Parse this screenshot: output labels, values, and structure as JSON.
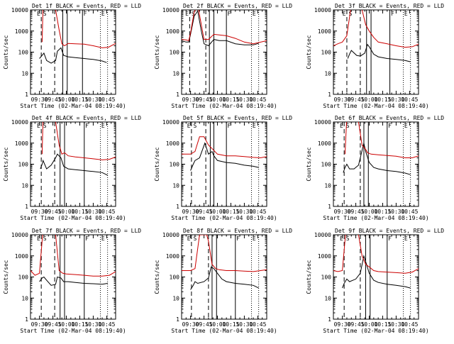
{
  "figure": {
    "xlabel": "Start Time (02-Mar-04 08:19:40)",
    "ylabel": "Counts/sec",
    "x_ticks": [
      "09:30",
      "09:45",
      "10:00",
      "10:15",
      "10:30",
      "10:45"
    ],
    "y_ticks": [
      "1",
      "10",
      "100",
      "1000",
      "10000"
    ],
    "colors": {
      "events": "#000000",
      "lld": "#cc0000"
    }
  },
  "chart_data": [
    {
      "type": "line",
      "title": "Det 1f BLACK = Events, RED = LLD",
      "xlabel": "Start Time (02-Mar-04 08:19:40)",
      "ylabel": "Counts/sec",
      "yscale": "log",
      "ylim": [
        1,
        10000
      ],
      "x_unit": "minutes after 09:20",
      "xlim": [
        0,
        95
      ],
      "region_labels": [
        "E",
        "S",
        "F",
        "E"
      ],
      "solid_lines": [
        36,
        41,
        58
      ],
      "dashed_lines": [
        12,
        27
      ],
      "dotted_lines": [
        78,
        86
      ],
      "series": [
        {
          "name": "Events",
          "color": "#000000",
          "x": [
            10,
            14,
            15,
            18,
            23,
            28,
            30,
            34,
            37,
            42,
            50,
            60,
            70,
            80,
            85
          ],
          "y": [
            50,
            80,
            90,
            40,
            30,
            40,
            110,
            160,
            70,
            60,
            55,
            50,
            45,
            38,
            32
          ]
        },
        {
          "name": "LLD",
          "color": "#cc0000",
          "x": [
            13,
            14,
            20,
            28,
            32,
            35,
            38,
            42,
            50,
            60,
            70,
            80,
            87,
            95
          ],
          "y": [
            300,
            20000,
            15000,
            10000,
            1100,
            250,
            200,
            260,
            250,
            240,
            200,
            160,
            170,
            260
          ]
        }
      ]
    },
    {
      "type": "line",
      "title": "Det 2f BLACK = Events, RED = LLD",
      "xlabel": "Start Time (02-Mar-04 08:19:40)",
      "ylabel": "Counts/sec",
      "yscale": "log",
      "ylim": [
        1,
        10000
      ],
      "x_unit": "minutes after 09:20",
      "xlim": [
        0,
        95
      ],
      "region_labels": [
        "E",
        "S",
        "F",
        "E"
      ],
      "solid_lines": [
        31,
        36,
        50
      ],
      "dashed_lines": [
        9,
        27
      ],
      "dotted_lines": [
        78,
        86
      ],
      "series": [
        {
          "name": "Events",
          "color": "#000000",
          "x": [
            0,
            5,
            8,
            10,
            14,
            18,
            22,
            25,
            30,
            36,
            42,
            50,
            60,
            70,
            80,
            86
          ],
          "y": [
            350,
            300,
            300,
            700,
            5000,
            9000,
            1000,
            250,
            200,
            400,
            350,
            350,
            250,
            220,
            220,
            260
          ]
        },
        {
          "name": "LLD",
          "color": "#cc0000",
          "x": [
            0,
            5,
            8,
            10,
            14,
            18,
            22,
            25,
            30,
            36,
            42,
            50,
            60,
            70,
            80,
            95
          ],
          "y": [
            400,
            380,
            350,
            800,
            8000,
            20000,
            2000,
            400,
            400,
            700,
            650,
            600,
            450,
            300,
            250,
            350
          ]
        }
      ]
    },
    {
      "type": "line",
      "title": "Det 3f BLACK = Events, RED = LLD",
      "xlabel": "Start Time (02-Mar-04 08:19:40)",
      "ylabel": "Counts/sec",
      "yscale": "log",
      "ylim": [
        1,
        10000
      ],
      "x_unit": "minutes after 09:20",
      "xlim": [
        0,
        95
      ],
      "region_labels": [
        "E",
        "S",
        "F",
        "E"
      ],
      "solid_lines": [
        37,
        42,
        63
      ],
      "dashed_lines": [
        15,
        30
      ],
      "dotted_lines": [
        78,
        86
      ],
      "series": [
        {
          "name": "Events",
          "color": "#000000",
          "x": [
            16,
            18,
            20,
            26,
            30,
            35,
            38,
            40,
            45,
            50,
            60,
            70,
            80,
            86
          ],
          "y": [
            50,
            80,
            120,
            70,
            65,
            90,
            230,
            180,
            80,
            60,
            50,
            45,
            40,
            35
          ]
        },
        {
          "name": "LLD",
          "color": "#cc0000",
          "x": [
            0,
            5,
            10,
            15,
            20,
            28,
            32,
            36,
            40,
            45,
            50,
            60,
            70,
            80,
            88,
            95
          ],
          "y": [
            200,
            250,
            300,
            600,
            20000,
            15000,
            10000,
            2000,
            1000,
            500,
            300,
            250,
            200,
            170,
            180,
            240
          ]
        }
      ]
    },
    {
      "type": "line",
      "title": "Det 4f BLACK = Events, RED = LLD",
      "xlabel": "Start Time (02-Mar-04 08:19:40)",
      "ylabel": "Counts/sec",
      "yscale": "log",
      "ylim": [
        1,
        10000
      ],
      "x_unit": "minutes after 09:20",
      "xlim": [
        0,
        95
      ],
      "region_labels": [
        "E",
        "S",
        "F",
        "E"
      ],
      "solid_lines": [
        33,
        38,
        60
      ],
      "dashed_lines": [
        12,
        27
      ],
      "dotted_lines": [
        78,
        86
      ],
      "series": [
        {
          "name": "Events",
          "color": "#000000",
          "x": [
            11,
            13,
            14,
            18,
            23,
            28,
            30,
            34,
            37,
            42,
            50,
            60,
            70,
            80,
            86
          ],
          "y": [
            60,
            100,
            150,
            60,
            90,
            200,
            300,
            200,
            80,
            60,
            55,
            50,
            45,
            40,
            30
          ]
        },
        {
          "name": "LLD",
          "color": "#cc0000",
          "x": [
            13,
            14,
            20,
            28,
            32,
            35,
            38,
            42,
            50,
            60,
            70,
            80,
            88,
            95
          ],
          "y": [
            300,
            20000,
            15000,
            10000,
            800,
            300,
            350,
            250,
            220,
            200,
            180,
            160,
            170,
            220
          ]
        }
      ]
    },
    {
      "type": "line",
      "title": "Det 5f BLACK = Events, RED = LLD",
      "xlabel": "Start Time (02-Mar-04 08:19:40)",
      "ylabel": "Counts/sec",
      "yscale": "log",
      "ylim": [
        1,
        10000
      ],
      "x_unit": "minutes after 09:20",
      "xlim": [
        0,
        95
      ],
      "region_labels": [
        "E",
        "S",
        "F",
        "E"
      ],
      "solid_lines": [
        32,
        36,
        50
      ],
      "dashed_lines": [
        11,
        27
      ],
      "dotted_lines": [
        78,
        86
      ],
      "series": [
        {
          "name": "Events",
          "color": "#000000",
          "x": [
            10,
            13,
            15,
            20,
            26,
            30,
            34,
            36,
            40,
            50,
            60,
            70,
            80,
            86
          ],
          "y": [
            50,
            100,
            150,
            200,
            1000,
            300,
            400,
            250,
            150,
            120,
            110,
            90,
            80,
            70
          ]
        },
        {
          "name": "LLD",
          "color": "#cc0000",
          "x": [
            0,
            5,
            10,
            15,
            20,
            25,
            30,
            35,
            40,
            50,
            60,
            70,
            80,
            88,
            95
          ],
          "y": [
            300,
            300,
            300,
            400,
            2000,
            2000,
            800,
            500,
            300,
            250,
            250,
            230,
            210,
            200,
            230
          ]
        }
      ]
    },
    {
      "type": "line",
      "title": "Det 6f BLACK = Events, RED = LLD",
      "xlabel": "Start Time (02-Mar-04 08:19:40)",
      "ylabel": "Counts/sec",
      "yscale": "log",
      "ylim": [
        1,
        10000
      ],
      "x_unit": "minutes after 09:20",
      "xlim": [
        0,
        95
      ],
      "region_labels": [
        "E",
        "S",
        "F",
        "E"
      ],
      "solid_lines": [
        34,
        39,
        60
      ],
      "dashed_lines": [
        12,
        30
      ],
      "dotted_lines": [
        78,
        86
      ],
      "series": [
        {
          "name": "Events",
          "color": "#000000",
          "x": [
            11,
            13,
            15,
            18,
            23,
            28,
            30,
            34,
            36,
            40,
            45,
            50,
            60,
            70,
            80,
            86
          ],
          "y": [
            40,
            70,
            100,
            60,
            60,
            90,
            200,
            1000,
            400,
            120,
            70,
            60,
            50,
            45,
            38,
            32
          ]
        },
        {
          "name": "LLD",
          "color": "#cc0000",
          "x": [
            13,
            15,
            20,
            28,
            32,
            36,
            38,
            42,
            50,
            60,
            70,
            80,
            88,
            95
          ],
          "y": [
            300,
            20000,
            15000,
            10000,
            800,
            500,
            350,
            300,
            280,
            260,
            240,
            200,
            200,
            250
          ]
        }
      ]
    },
    {
      "type": "line",
      "title": "Det 7f BLACK = Events, RED = LLD",
      "xlabel": "Start Time (02-Mar-04 08:19:40)",
      "ylabel": "Counts/sec",
      "yscale": "log",
      "ylim": [
        1,
        10000
      ],
      "x_unit": "minutes after 09:20",
      "xlim": [
        0,
        95
      ],
      "region_labels": [
        "E",
        "S",
        "F",
        "E"
      ],
      "solid_lines": [
        33,
        38,
        60
      ],
      "dashed_lines": [
        12,
        27
      ],
      "dotted_lines": [
        78,
        86
      ],
      "series": [
        {
          "name": "Events",
          "color": "#000000",
          "x": [
            10,
            13,
            15,
            18,
            23,
            28,
            30,
            34,
            37,
            42,
            50,
            60,
            70,
            80,
            86
          ],
          "y": [
            60,
            90,
            100,
            70,
            40,
            45,
            100,
            90,
            60,
            60,
            55,
            50,
            48,
            45,
            50
          ]
        },
        {
          "name": "LLD",
          "color": "#cc0000",
          "x": [
            0,
            5,
            10,
            14,
            20,
            28,
            32,
            36,
            40,
            50,
            60,
            70,
            80,
            88,
            95
          ],
          "y": [
            200,
            120,
            150,
            20000,
            15000,
            10000,
            200,
            150,
            140,
            130,
            120,
            110,
            110,
            120,
            180
          ]
        }
      ]
    },
    {
      "type": "line",
      "title": "Det 8f BLACK = Events, RED = LLD",
      "xlabel": "Start Time (02-Mar-04 08:19:40)",
      "ylabel": "Counts/sec",
      "yscale": "log",
      "ylim": [
        1,
        10000
      ],
      "x_unit": "minutes after 09:20",
      "xlim": [
        0,
        95
      ],
      "region_labels": [
        "E",
        "S",
        "F",
        "E"
      ],
      "solid_lines": [
        34,
        39,
        60
      ],
      "dashed_lines": [
        11,
        30
      ],
      "dotted_lines": [
        78,
        86
      ],
      "series": [
        {
          "name": "Events",
          "color": "#000000",
          "x": [
            10,
            13,
            15,
            18,
            25,
            30,
            33,
            36,
            40,
            45,
            50,
            60,
            70,
            80,
            86
          ],
          "y": [
            25,
            40,
            60,
            50,
            60,
            90,
            300,
            250,
            150,
            80,
            60,
            50,
            45,
            40,
            30
          ]
        },
        {
          "name": "LLD",
          "color": "#cc0000",
          "x": [
            0,
            5,
            10,
            15,
            20,
            28,
            30,
            34,
            38,
            42,
            50,
            60,
            70,
            80,
            88,
            95
          ],
          "y": [
            200,
            200,
            200,
            250,
            10000,
            10000,
            5000,
            400,
            250,
            220,
            200,
            200,
            190,
            180,
            200,
            220
          ]
        }
      ]
    },
    {
      "type": "line",
      "title": "Det 9f BLACK = Events, RED = LLD",
      "xlabel": "Start Time (02-Mar-04 08:19:40)",
      "ylabel": "Counts/sec",
      "yscale": "log",
      "ylim": [
        1,
        10000
      ],
      "x_unit": "minutes after 09:20",
      "xlim": [
        0,
        95
      ],
      "region_labels": [
        "E",
        "S",
        "F",
        "E"
      ],
      "solid_lines": [
        36,
        41,
        60
      ],
      "dashed_lines": [
        12,
        30
      ],
      "dotted_lines": [
        78,
        86
      ],
      "series": [
        {
          "name": "Events",
          "color": "#000000",
          "x": [
            10,
            12,
            15,
            18,
            25,
            30,
            34,
            37,
            40,
            45,
            50,
            60,
            70,
            80,
            86
          ],
          "y": [
            30,
            50,
            80,
            60,
            80,
            150,
            1000,
            400,
            150,
            70,
            55,
            45,
            40,
            35,
            30
          ]
        },
        {
          "name": "LLD",
          "color": "#cc0000",
          "x": [
            0,
            5,
            10,
            14,
            20,
            28,
            32,
            36,
            40,
            45,
            50,
            60,
            70,
            80,
            88,
            95
          ],
          "y": [
            200,
            180,
            200,
            20000,
            15000,
            10000,
            1000,
            400,
            300,
            200,
            180,
            170,
            160,
            150,
            170,
            250
          ]
        }
      ]
    }
  ]
}
